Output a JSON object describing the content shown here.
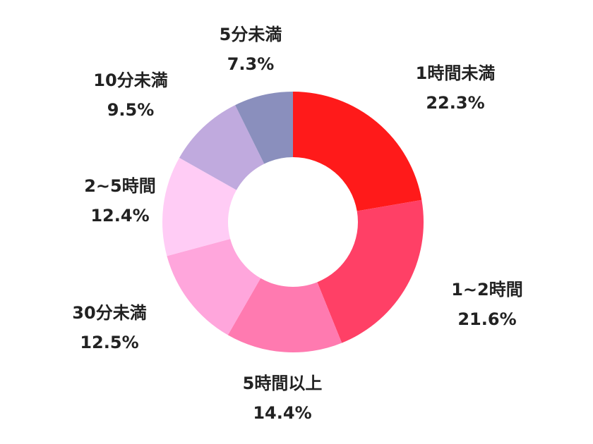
{
  "chart_data": {
    "type": "donut",
    "categories": [
      "1時間未満",
      "1~2時間",
      "5時間以上",
      "30分未満",
      "2~5時間",
      "10分未満",
      "5分未満"
    ],
    "values": [
      22.3,
      21.6,
      14.4,
      12.5,
      12.4,
      9.5,
      7.3
    ],
    "value_labels": [
      "22.3%",
      "21.6%",
      "14.4%",
      "12.5%",
      "12.4%",
      "9.5%",
      "7.3%"
    ],
    "colors": [
      "#ff1a1a",
      "#ff4066",
      "#ff7ab0",
      "#ffa6dc",
      "#ffccf5",
      "#c0aade",
      "#8a8fbd"
    ]
  }
}
